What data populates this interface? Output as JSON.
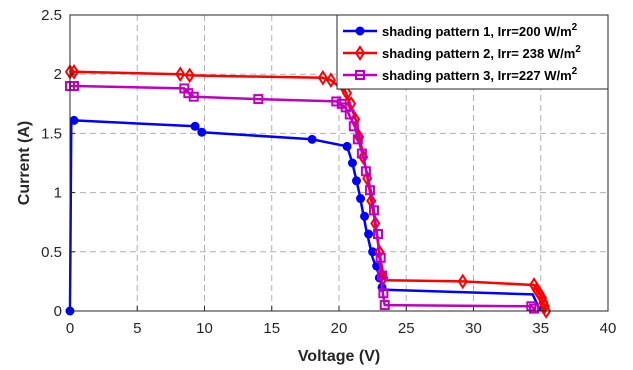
{
  "chart_data": {
    "type": "line",
    "title": "",
    "xlabel": "Voltage (V)",
    "ylabel": "Current (A)",
    "xlim": [
      0,
      40
    ],
    "ylim": [
      0,
      2.5
    ],
    "xticks": [
      0,
      5,
      10,
      15,
      20,
      25,
      30,
      35,
      40
    ],
    "xtick_labels": [
      "0",
      "5",
      "10",
      "15",
      "20",
      "25",
      "30",
      "35",
      "40"
    ],
    "yticks": [
      0,
      0.5,
      1,
      1.5,
      2,
      2.5
    ],
    "ytick_labels": [
      "0",
      "0.5",
      "1",
      "1.5",
      "2",
      "2.5"
    ],
    "grid": true,
    "legend_position": "top-right",
    "series": [
      {
        "name": "shading pattern 1, Irr=200 W/m",
        "name_superscript": "2",
        "color": "#0000ff",
        "marker": "circle",
        "x": [
          0,
          0.1,
          0.2,
          0.3,
          9.3,
          9.8,
          18.0,
          20.6,
          21.0,
          21.5,
          22.0,
          22.5,
          23.0,
          23.2,
          23.4,
          34.4,
          34.6,
          34.8,
          35.0
        ],
        "y": [
          0,
          1.61,
          1.61,
          1.61,
          1.56,
          1.51,
          1.45,
          1.39,
          1.25,
          1.0,
          0.7,
          0.45,
          0.3,
          0.2,
          0.18,
          0.14,
          0.09,
          0.04,
          0.0
        ],
        "marker_x": [
          0,
          0.3,
          9.3,
          9.8,
          18.0,
          20.6,
          21.0,
          21.3,
          21.6,
          21.9,
          22.2,
          22.5,
          22.8,
          23.0,
          23.2
        ],
        "marker_y": [
          0,
          1.61,
          1.56,
          1.51,
          1.45,
          1.39,
          1.25,
          1.1,
          0.95,
          0.8,
          0.65,
          0.5,
          0.38,
          0.28,
          0.2
        ]
      },
      {
        "name": "shading pattern 2, Irr= 238 W/m",
        "name_superscript": "2",
        "color": "#ff0000",
        "marker": "diamond",
        "x": [
          0,
          0.3,
          8.2,
          8.9,
          18.8,
          19.4,
          20.5,
          21.3,
          22.0,
          22.6,
          23.0,
          23.3,
          23.5,
          29.2,
          34.5,
          34.9,
          35.2,
          35.4
        ],
        "y": [
          2.02,
          2.02,
          2.0,
          1.99,
          1.97,
          1.95,
          1.85,
          1.6,
          1.2,
          0.8,
          0.5,
          0.3,
          0.26,
          0.25,
          0.22,
          0.15,
          0.07,
          0.0
        ],
        "marker_x": [
          0,
          0.3,
          8.2,
          8.9,
          18.8,
          19.4,
          20.3,
          20.6,
          20.9,
          21.2,
          21.5,
          21.8,
          22.1,
          22.4,
          22.7,
          23.0,
          23.3,
          29.2,
          34.5,
          34.7,
          34.9,
          35.1,
          35.2,
          35.3,
          35.4
        ],
        "marker_y": [
          2.02,
          2.02,
          2.0,
          1.99,
          1.97,
          1.95,
          1.9,
          1.84,
          1.75,
          1.62,
          1.47,
          1.3,
          1.12,
          0.93,
          0.74,
          0.5,
          0.28,
          0.25,
          0.22,
          0.18,
          0.15,
          0.11,
          0.07,
          0.04,
          0.0
        ]
      },
      {
        "name": "shading pattern 3, Irr=227 W/m",
        "name_superscript": "2",
        "color": "#c000c0",
        "marker": "square",
        "x": [
          0,
          0.3,
          8.5,
          8.8,
          9.2,
          14.0,
          19.8,
          20.5,
          21.2,
          21.8,
          22.4,
          22.9,
          23.2,
          23.4,
          34.3,
          34.4,
          34.5,
          34.6
        ],
        "y": [
          1.9,
          1.9,
          1.88,
          1.84,
          1.81,
          1.79,
          1.77,
          1.72,
          1.55,
          1.3,
          1.0,
          0.6,
          0.2,
          0.05,
          0.04,
          0.03,
          0.02,
          0.0
        ],
        "marker_x": [
          0,
          0.3,
          8.5,
          8.8,
          9.2,
          14.0,
          19.8,
          20.2,
          20.5,
          20.8,
          21.1,
          21.4,
          21.7,
          22.0,
          22.3,
          22.6,
          22.9,
          23.1,
          23.2,
          23.3,
          23.4,
          34.3,
          34.5
        ],
        "marker_y": [
          1.9,
          1.9,
          1.88,
          1.84,
          1.81,
          1.79,
          1.77,
          1.75,
          1.72,
          1.66,
          1.56,
          1.45,
          1.33,
          1.18,
          1.02,
          0.85,
          0.65,
          0.45,
          0.3,
          0.15,
          0.05,
          0.04,
          0.02
        ]
      }
    ]
  }
}
